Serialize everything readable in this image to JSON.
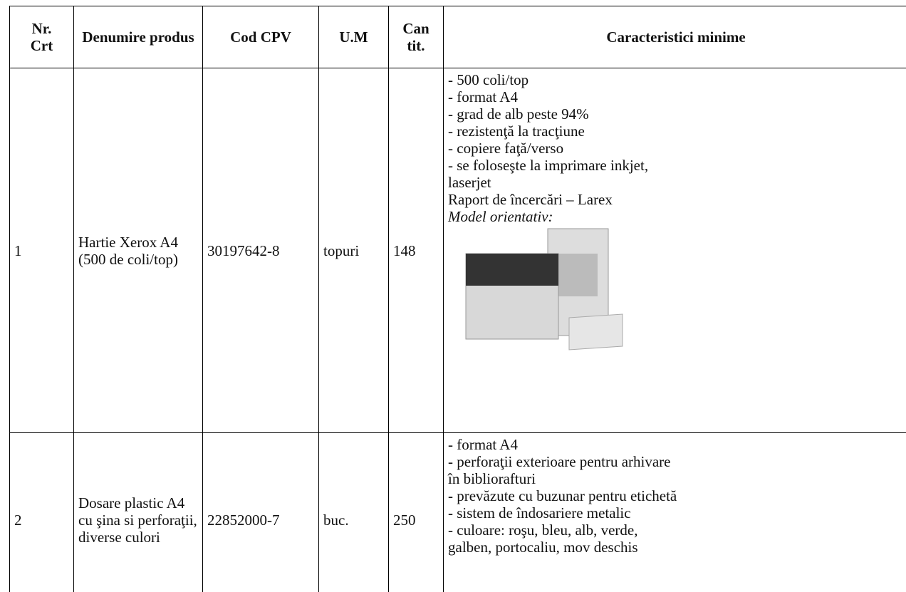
{
  "table": {
    "header": [
      "Nr. Crt",
      "Denumire produs",
      "Cod CPV",
      "U.M",
      "Can tit.",
      "Caracteristici minime"
    ],
    "rows": [
      {
        "nr": "1",
        "name": "Hartie Xerox A4 (500 de coli/top)",
        "cpv": "30197642-8",
        "um": "topuri",
        "qty": "148",
        "specs": [
          "- 500 coli/top",
          "- format A4",
          "- grad de alb peste 94%",
          "- rezistenţă la tracţiune",
          "- copiere faţă/verso",
          "- se foloseşte la imprimare inkjet,",
          "laserjet",
          "Raport de încercări – Larex"
        ],
        "model_label": "Model orientativ:"
      },
      {
        "nr": "2",
        "name": "Dosare plastic A4 cu şina si perforaţii, diverse culori",
        "cpv": "22852000-7",
        "um": "buc.",
        "qty": "250",
        "specs": [
          "- format A4",
          "- perforaţii exterioare pentru arhivare",
          "în bibliorafturi",
          "- prevăzute cu buzunar pentru etichetă",
          "- sistem de îndosariere metalic",
          "- culoare: roşu, bleu, alb, verde,",
          "galben, portocaliu, mov deschis"
        ]
      }
    ]
  }
}
